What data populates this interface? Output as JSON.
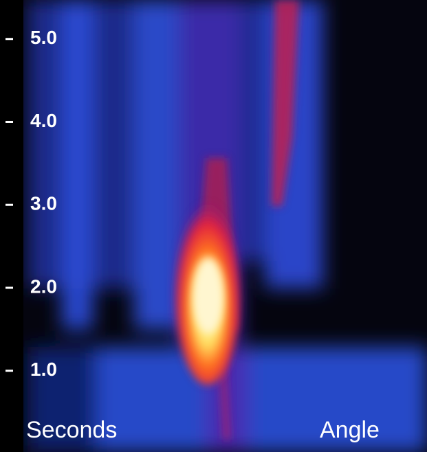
{
  "chart_data": {
    "type": "image",
    "ylabel": "Seconds",
    "xlabel": "Angle",
    "ylim": [
      0.02,
      5.47
    ],
    "yticks": [
      {
        "value": 1,
        "label": "1.0"
      },
      {
        "value": 2,
        "label": "2.0"
      },
      {
        "value": 3,
        "label": "3.0"
      },
      {
        "value": 4,
        "label": "4.0"
      },
      {
        "value": 5,
        "label": "5.0"
      }
    ]
  }
}
